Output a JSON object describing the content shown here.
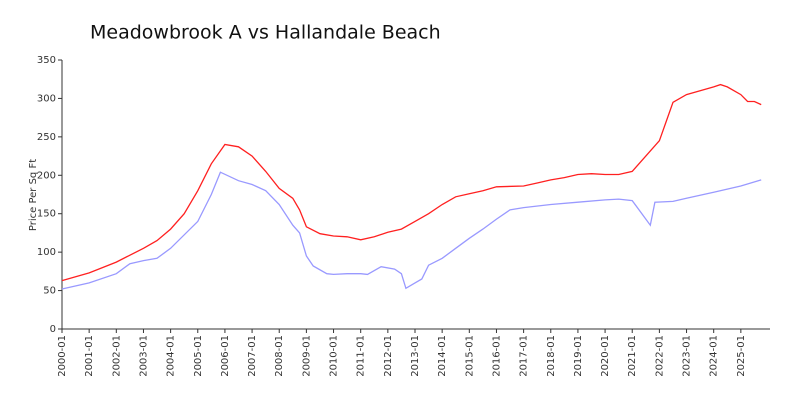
{
  "chart_data": {
    "type": "line",
    "title": "Meadowbrook A vs Hallandale Beach",
    "ylabel": "Price Per Sq Ft",
    "series": [
      {
        "color": "#ff2020",
        "x": [
          "2000-01",
          "2001-01",
          "2002-01",
          "2003-01",
          "2003-07",
          "2004-01",
          "2004-07",
          "2005-01",
          "2005-07",
          "2006-01",
          "2006-07",
          "2007-01",
          "2007-07",
          "2008-01",
          "2008-07",
          "2008-10",
          "2009-01",
          "2009-07",
          "2010-01",
          "2010-07",
          "2011-01",
          "2011-07",
          "2012-01",
          "2012-07",
          "2013-01",
          "2013-07",
          "2014-01",
          "2014-07",
          "2015-01",
          "2015-07",
          "2016-01",
          "2017-01",
          "2017-07",
          "2018-01",
          "2018-07",
          "2019-01",
          "2019-07",
          "2020-01",
          "2020-07",
          "2021-01",
          "2021-07",
          "2022-01",
          "2022-04",
          "2022-07",
          "2023-01",
          "2023-07",
          "2024-01",
          "2024-04",
          "2024-07",
          "2025-01",
          "2025-04",
          "2025-07",
          "2025-10"
        ],
        "values": [
          63,
          73,
          87,
          105,
          115,
          130,
          150,
          180,
          215,
          240,
          237,
          225,
          205,
          183,
          170,
          155,
          133,
          124,
          121,
          120,
          116,
          120,
          126,
          130,
          140,
          150,
          162,
          172,
          176,
          180,
          185,
          186,
          190,
          194,
          197,
          201,
          202,
          201,
          201,
          205,
          225,
          245,
          270,
          295,
          305,
          310,
          315,
          318,
          315,
          305,
          296,
          296,
          292
        ]
      },
      {
        "color": "#9999ff",
        "x": [
          "2000-01",
          "2001-01",
          "2002-01",
          "2002-07",
          "2003-01",
          "2003-07",
          "2004-01",
          "2005-01",
          "2005-07",
          "2005-11",
          "2006-07",
          "2007-01",
          "2007-07",
          "2008-01",
          "2008-07",
          "2008-10",
          "2009-01",
          "2009-04",
          "2009-10",
          "2010-01",
          "2010-07",
          "2011-01",
          "2011-04",
          "2011-10",
          "2012-04",
          "2012-07",
          "2012-09",
          "2013-01",
          "2013-04",
          "2013-07",
          "2014-01",
          "2014-07",
          "2015-01",
          "2015-07",
          "2016-01",
          "2016-07",
          "2017-01",
          "2018-01",
          "2019-01",
          "2020-01",
          "2020-07",
          "2021-01",
          "2021-09",
          "2021-11",
          "2022-07",
          "2023-01",
          "2024-01",
          "2025-01",
          "2025-10"
        ],
        "values": [
          52,
          60,
          72,
          85,
          89,
          92,
          105,
          140,
          175,
          204,
          193,
          188,
          180,
          162,
          135,
          125,
          95,
          82,
          72,
          71,
          72,
          72,
          71,
          81,
          78,
          72,
          53,
          60,
          65,
          83,
          92,
          105,
          118,
          130,
          143,
          155,
          158,
          162,
          165,
          168,
          169,
          167,
          135,
          165,
          166,
          170,
          178,
          186,
          194
        ]
      }
    ],
    "xlim": [
      "2000-01",
      "2026-01"
    ],
    "xticks": [
      "2000-01",
      "2001-01",
      "2002-01",
      "2003-01",
      "2004-01",
      "2005-01",
      "2006-01",
      "2007-01",
      "2008-01",
      "2009-01",
      "2010-01",
      "2011-01",
      "2012-01",
      "2013-01",
      "2014-01",
      "2015-01",
      "2016-01",
      "2017-01",
      "2018-01",
      "2019-01",
      "2020-01",
      "2021-01",
      "2022-01",
      "2023-01",
      "2024-01",
      "2025-01"
    ],
    "ylim": [
      0,
      350
    ],
    "yticks": [
      0,
      50,
      100,
      150,
      200,
      250,
      300,
      350
    ],
    "grid": false
  }
}
